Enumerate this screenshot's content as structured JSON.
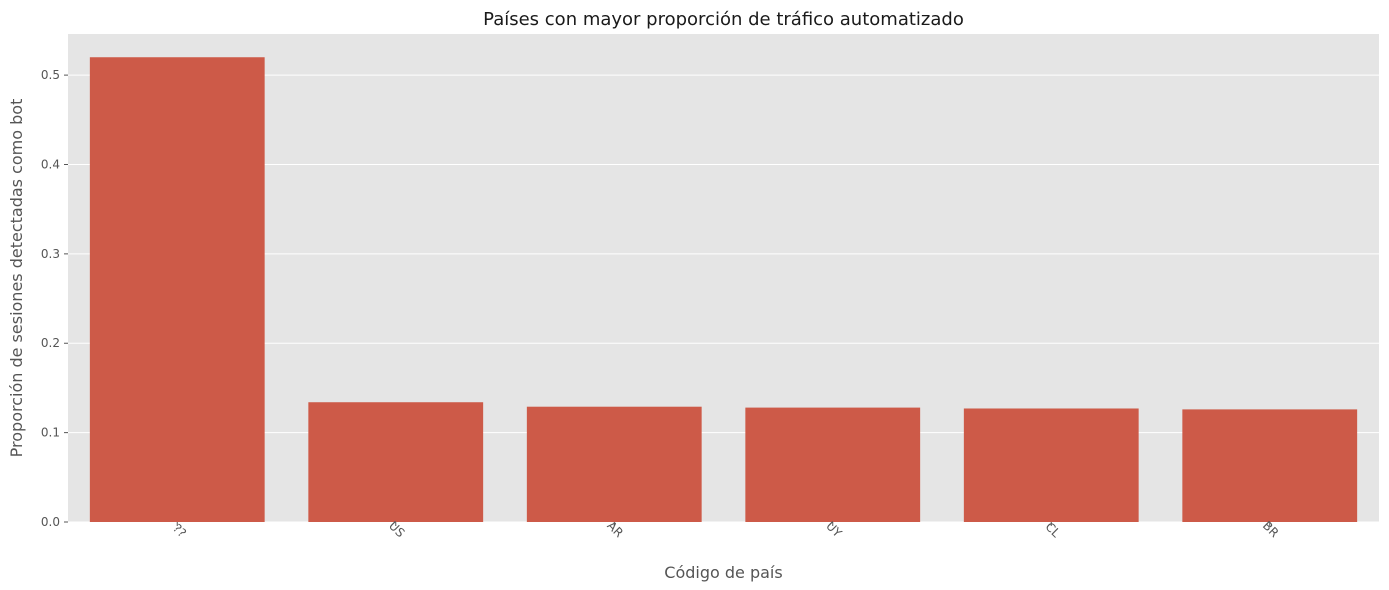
{
  "chart_data": {
    "type": "bar",
    "title": "Países con mayor proporción de tráfico automatizado",
    "xlabel": "Código de país",
    "ylabel": "Proporción de sesiones detectadas como bot",
    "categories": [
      "??",
      "US",
      "AR",
      "UY",
      "CL",
      "BR"
    ],
    "values": [
      0.52,
      0.134,
      0.129,
      0.128,
      0.127,
      0.126
    ],
    "ylim": [
      0,
      0.546
    ],
    "yticks": [
      0.0,
      0.1,
      0.2,
      0.3,
      0.4,
      0.5
    ],
    "ytick_labels": [
      "0.0",
      "0.1",
      "0.2",
      "0.3",
      "0.4",
      "0.5"
    ],
    "xtick_rotation_deg": 45,
    "grid": true,
    "style": "ggplot",
    "colors": {
      "bar": "#CD5A48",
      "plot_background": "#E5E5E5",
      "grid": "#FFFFFF"
    }
  }
}
